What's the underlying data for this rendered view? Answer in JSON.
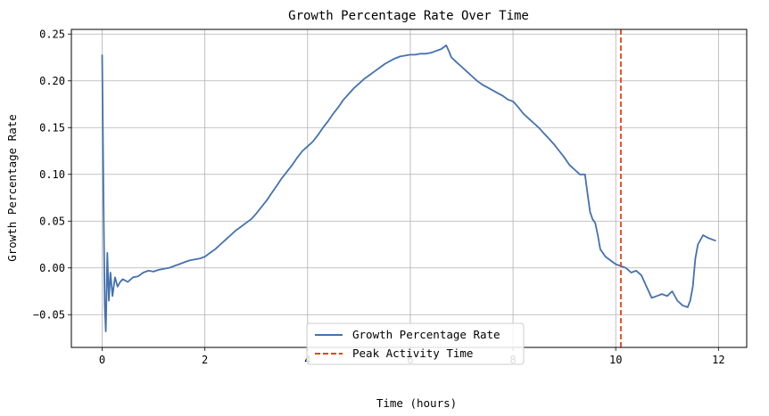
{
  "chart_data": {
    "type": "line",
    "title": "Growth Percentage Rate Over Time",
    "xlabel": "Time (hours)",
    "ylabel": "Growth Percentage Rate",
    "xlim": [
      -0.6,
      12.55
    ],
    "ylim": [
      -0.085,
      0.255
    ],
    "xticks": [
      0,
      2,
      4,
      6,
      8,
      10,
      12
    ],
    "xtick_labels": [
      "0",
      "2",
      "4",
      "6",
      "8",
      "10",
      "12"
    ],
    "yticks": [
      -0.05,
      0.0,
      0.05,
      0.1,
      0.15,
      0.2,
      0.25
    ],
    "ytick_labels": [
      "−0.05",
      "0.00",
      "0.05",
      "0.10",
      "0.15",
      "0.20",
      "0.25"
    ],
    "grid": true,
    "legend_position": "bottom-center",
    "series": [
      {
        "name": "Growth Percentage Rate",
        "color": "#4471ae",
        "style": "solid",
        "x": [
          0.0,
          0.03,
          0.05,
          0.07,
          0.1,
          0.13,
          0.16,
          0.2,
          0.25,
          0.3,
          0.35,
          0.4,
          0.5,
          0.6,
          0.7,
          0.8,
          0.9,
          1.0,
          1.1,
          1.2,
          1.3,
          1.4,
          1.5,
          1.6,
          1.7,
          1.8,
          1.9,
          2.0,
          2.1,
          2.2,
          2.3,
          2.4,
          2.5,
          2.6,
          2.7,
          2.8,
          2.9,
          3.0,
          3.1,
          3.2,
          3.3,
          3.4,
          3.5,
          3.6,
          3.7,
          3.8,
          3.9,
          4.0,
          4.1,
          4.2,
          4.3,
          4.4,
          4.5,
          4.6,
          4.7,
          4.8,
          4.9,
          5.0,
          5.1,
          5.2,
          5.3,
          5.4,
          5.5,
          5.6,
          5.7,
          5.8,
          5.9,
          6.0,
          6.1,
          6.2,
          6.3,
          6.4,
          6.5,
          6.6,
          6.7,
          6.75,
          6.8,
          6.9,
          7.0,
          7.1,
          7.2,
          7.3,
          7.4,
          7.5,
          7.6,
          7.7,
          7.8,
          7.9,
          8.0,
          8.1,
          8.2,
          8.3,
          8.4,
          8.5,
          8.6,
          8.7,
          8.8,
          8.9,
          9.0,
          9.1,
          9.2,
          9.3,
          9.4,
          9.45,
          9.5,
          9.55,
          9.6,
          9.65,
          9.7,
          9.8,
          9.9,
          10.0,
          10.1,
          10.2,
          10.3,
          10.4,
          10.5,
          10.6,
          10.7,
          10.8,
          10.9,
          11.0,
          11.1,
          11.2,
          11.3,
          11.4,
          11.45,
          11.5,
          11.55,
          11.6,
          11.7,
          11.8,
          11.9,
          11.95
        ],
        "y": [
          0.228,
          0.05,
          -0.04,
          -0.068,
          0.016,
          -0.035,
          -0.005,
          -0.03,
          -0.01,
          -0.02,
          -0.015,
          -0.012,
          -0.015,
          -0.01,
          -0.009,
          -0.005,
          -0.003,
          -0.004,
          -0.002,
          -0.001,
          0.0,
          0.002,
          0.004,
          0.006,
          0.008,
          0.009,
          0.01,
          0.012,
          0.016,
          0.02,
          0.025,
          0.03,
          0.035,
          0.04,
          0.044,
          0.048,
          0.052,
          0.058,
          0.065,
          0.072,
          0.08,
          0.088,
          0.096,
          0.103,
          0.11,
          0.118,
          0.125,
          0.13,
          0.135,
          0.142,
          0.15,
          0.157,
          0.165,
          0.172,
          0.18,
          0.186,
          0.192,
          0.197,
          0.202,
          0.206,
          0.21,
          0.214,
          0.218,
          0.221,
          0.224,
          0.226,
          0.227,
          0.228,
          0.228,
          0.229,
          0.229,
          0.23,
          0.232,
          0.234,
          0.238,
          0.232,
          0.225,
          0.22,
          0.215,
          0.21,
          0.205,
          0.2,
          0.196,
          0.193,
          0.19,
          0.187,
          0.184,
          0.18,
          0.178,
          0.172,
          0.165,
          0.16,
          0.155,
          0.15,
          0.144,
          0.138,
          0.132,
          0.125,
          0.118,
          0.11,
          0.105,
          0.1,
          0.1,
          0.08,
          0.06,
          0.052,
          0.048,
          0.035,
          0.02,
          0.012,
          0.008,
          0.004,
          0.002,
          0.0,
          -0.005,
          -0.003,
          -0.008,
          -0.02,
          -0.032,
          -0.03,
          -0.028,
          -0.03,
          -0.025,
          -0.035,
          -0.04,
          -0.042,
          -0.035,
          -0.02,
          0.01,
          0.025,
          0.035,
          0.032,
          0.03,
          0.029
        ],
        "legend_label": "Growth Percentage Rate"
      },
      {
        "name": "Peak Activity Time",
        "color": "#e8431b",
        "style": "dashed",
        "type": "vline",
        "x_value": 10.1,
        "legend_label": "Peak Activity Time"
      }
    ]
  }
}
